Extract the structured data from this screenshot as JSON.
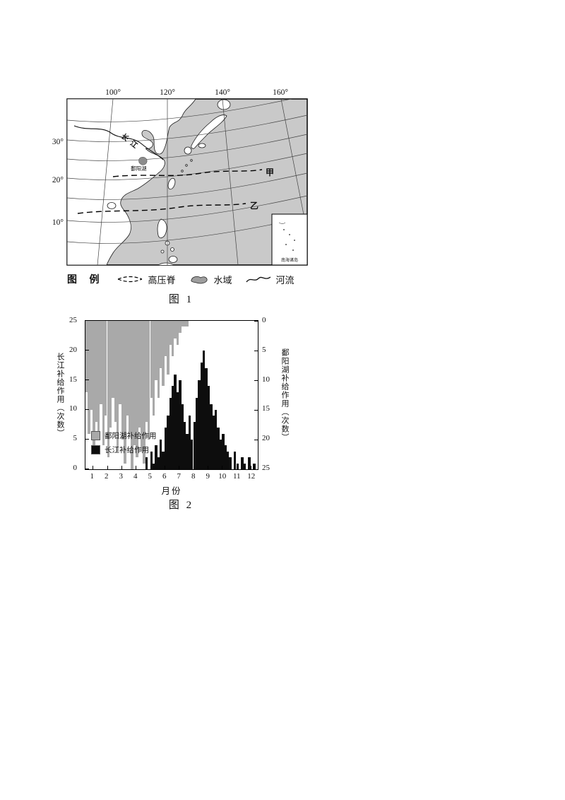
{
  "page": {
    "background": "#ffffff"
  },
  "figure1": {
    "caption": "图 1",
    "map": {
      "top_labels": [
        "100°",
        "120°",
        "140°",
        "160°"
      ],
      "left_labels": [
        "30°",
        "20°",
        "10°"
      ],
      "ridge_a_label": "甲",
      "ridge_b_label": "乙",
      "yangtze_label": "长江",
      "poyang_label": "鄱阳湖",
      "inset_label": "南海诸岛",
      "sea_color": "#c9c9c9",
      "land_color": "#ffffff"
    },
    "legend": {
      "title": "图 例",
      "items": [
        {
          "symbol": "high-pressure-ridge",
          "label": "高压脊"
        },
        {
          "symbol": "water-area",
          "label": "水域"
        },
        {
          "symbol": "river",
          "label": "河流"
        }
      ]
    }
  },
  "figure2": {
    "caption": "图 2"
  },
  "chart_data": {
    "type": "bar",
    "title": "图 2",
    "xlabel": "月份",
    "x_ticks": [
      "1",
      "2",
      "3",
      "4",
      "5",
      "6",
      "7",
      "8",
      "9",
      "10",
      "11",
      "12"
    ],
    "points_per_month": 6,
    "left_axis": {
      "label": "长江补给作用（次数）",
      "ticks": [
        0,
        5,
        10,
        15,
        20,
        25
      ],
      "range": [
        0,
        25
      ],
      "direction": "up"
    },
    "right_axis": {
      "label": "鄱阳湖补给作用（次数）",
      "ticks": [
        0,
        5,
        10,
        15,
        20,
        25
      ],
      "range": [
        0,
        25
      ],
      "direction": "down"
    },
    "legend_position": "inside-left-bottom",
    "series": [
      {
        "name": "鄱阳湖补给作用",
        "color": "#a9a9a9",
        "baseline": "top",
        "axis": "right",
        "values": [
          12,
          19,
          15,
          22,
          17,
          20,
          14,
          21,
          16,
          23,
          18,
          13,
          17,
          22,
          14,
          20,
          24,
          16,
          19,
          25,
          21,
          23,
          18,
          22,
          24,
          17,
          20,
          13,
          16,
          10,
          13,
          8,
          11,
          6,
          9,
          4,
          6,
          3,
          4,
          2,
          1,
          1,
          1,
          0,
          0,
          0,
          0,
          0,
          0,
          0,
          0,
          0,
          0,
          0,
          0,
          0,
          0,
          0,
          0,
          0,
          0,
          0,
          0,
          0,
          0,
          0,
          0,
          0,
          0,
          0,
          0,
          0
        ]
      },
      {
        "name": "长江补给作用",
        "color": "#0d0d0d",
        "baseline": "bottom",
        "axis": "left",
        "values": [
          0,
          0,
          0,
          0,
          0,
          0,
          0,
          0,
          0,
          0,
          0,
          0,
          0,
          0,
          0,
          0,
          0,
          0,
          0,
          0,
          0,
          0,
          0,
          0,
          0,
          2,
          0,
          3,
          1,
          4,
          2,
          5,
          3,
          7,
          9,
          12,
          14,
          16,
          13,
          15,
          11,
          8,
          6,
          9,
          5,
          8,
          12,
          15,
          18,
          20,
          17,
          14,
          11,
          9,
          10,
          7,
          5,
          6,
          4,
          3,
          2,
          0,
          3,
          1,
          0,
          2,
          1,
          0,
          2,
          0,
          1,
          0
        ]
      }
    ]
  }
}
